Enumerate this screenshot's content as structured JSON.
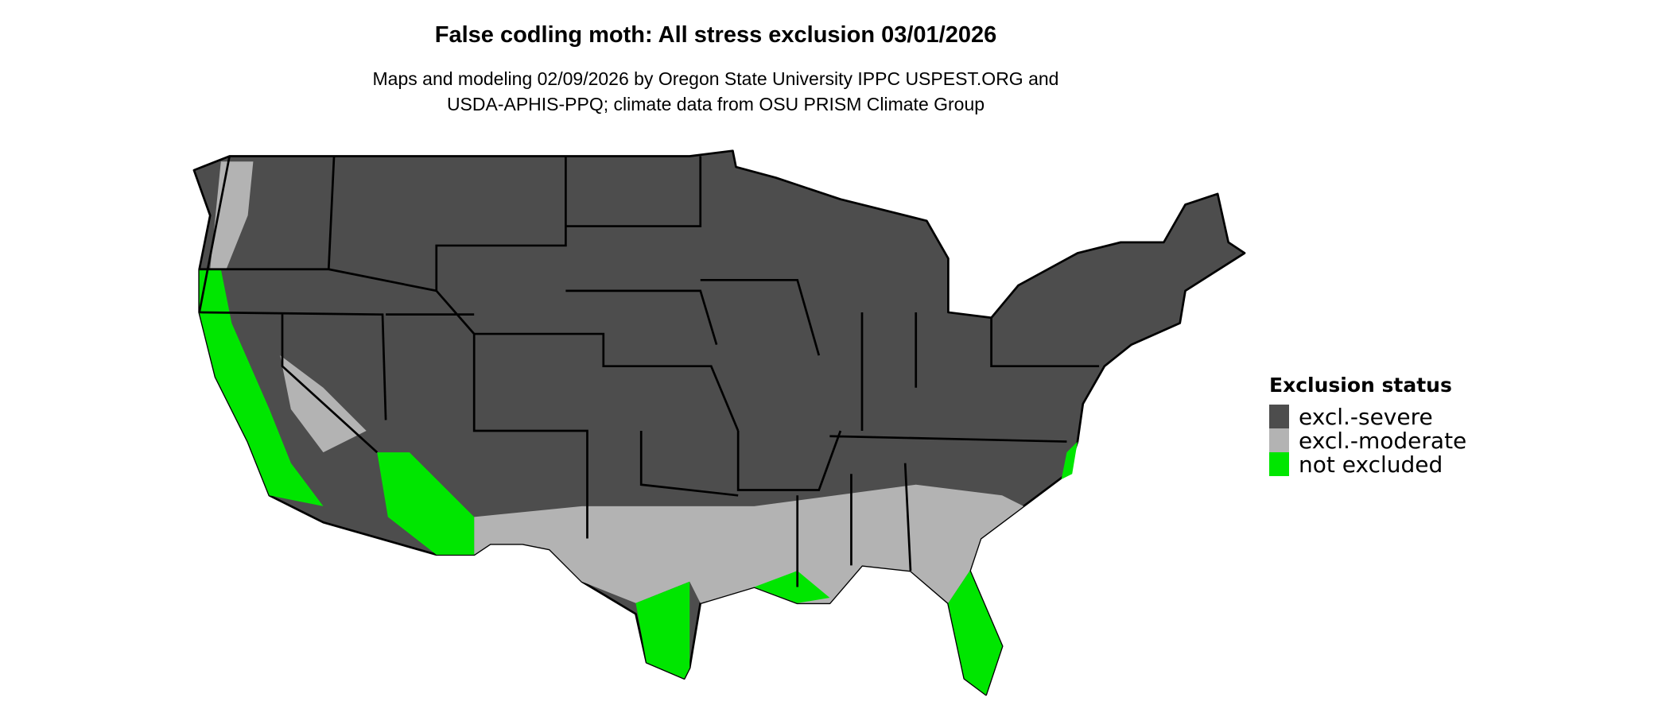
{
  "title": "False codling moth: All stress exclusion 03/01/2026",
  "subtitle_lines": [
    "Maps and modeling 02/09/2026 by Oregon State University IPPC USPEST.ORG and",
    "USDA-APHIS-PPQ; climate data from OSU PRISM Climate Group"
  ],
  "legend": {
    "title": "Exclusion status",
    "items": [
      {
        "label": "excl.-severe",
        "color": "#4d4d4d"
      },
      {
        "label": "excl.-moderate",
        "color": "#b3b3b3"
      },
      {
        "label": "not excluded",
        "color": "#00e600"
      }
    ]
  },
  "map_region": "Contiguous United States"
}
